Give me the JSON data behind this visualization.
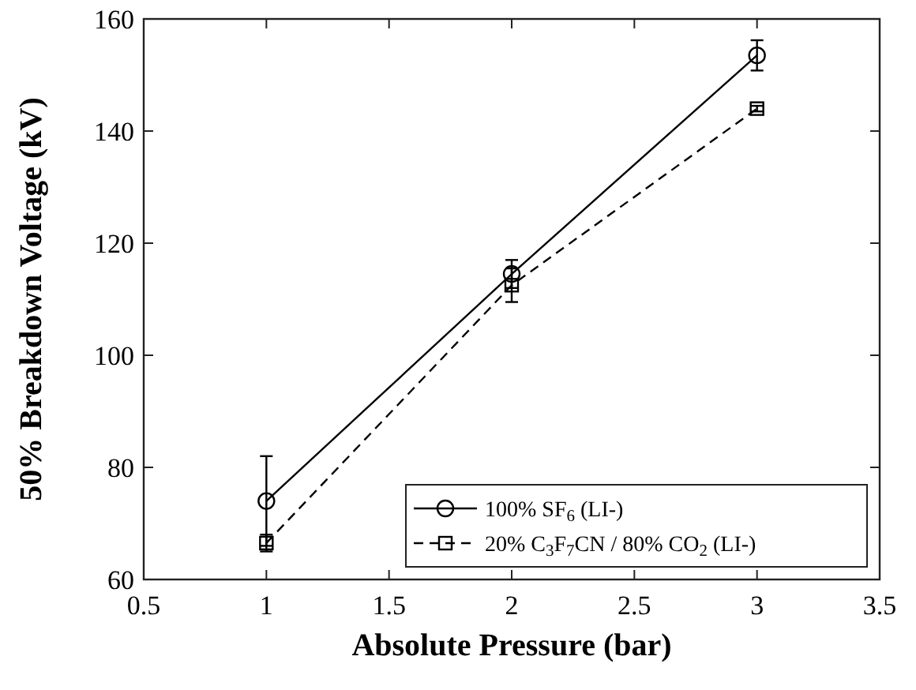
{
  "chart_data": {
    "type": "line",
    "xlabel": "Absolute Pressure (bar)",
    "ylabel": "50% Breakdown Voltage (kV)",
    "x": [
      1,
      2,
      3
    ],
    "xlim": [
      0.5,
      3.5
    ],
    "xticks": [
      0.5,
      1,
      1.5,
      2,
      2.5,
      3,
      3.5
    ],
    "ylim": [
      60,
      160
    ],
    "yticks": [
      60,
      80,
      100,
      120,
      140,
      160
    ],
    "grid": false,
    "legend": "bottom right",
    "series": [
      {
        "name": "100% SF$_{6}$ (LI-)",
        "color": "#000000",
        "values": [
          74,
          114.5,
          153.5
        ],
        "errors": [
          8,
          2.5,
          2.7
        ],
        "marker": "circle",
        "line_style": "solid"
      },
      {
        "name": "20% C$_{3}$F$_{7}$CN / 80% CO$_{2}$ (LI-)",
        "color": "#000000",
        "values": [
          66.5,
          112.5,
          144
        ],
        "errors": [
          1.5,
          3,
          0.5
        ],
        "marker": "square",
        "line_style": "dashed"
      }
    ]
  }
}
